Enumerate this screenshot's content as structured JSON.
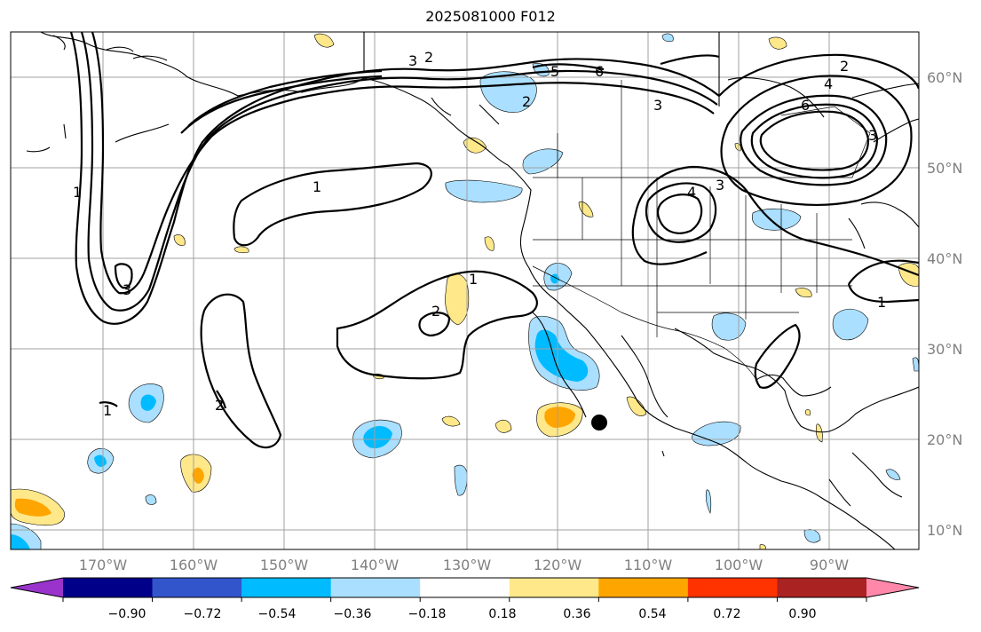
{
  "title": "2025081000 F012",
  "map": {
    "lon_labels": [
      "170°W",
      "160°W",
      "150°W",
      "140°W",
      "130°W",
      "120°W",
      "110°W",
      "100°W",
      "90°W"
    ],
    "lat_labels": [
      "60°N",
      "50°N",
      "40°N",
      "30°N",
      "20°N",
      "10°N"
    ],
    "contour_labels": [
      "1",
      "5",
      "3",
      "6",
      "2",
      "1",
      "1",
      "2",
      "1",
      "2",
      "2",
      "3",
      "4",
      "3",
      "6",
      "4",
      "2",
      "3",
      "3",
      "1"
    ],
    "colors": {
      "grid": "#a0a0a0",
      "coast": "#000000",
      "contour": "#000000",
      "label": "#808080"
    },
    "marker": "black-dot"
  },
  "colorbar": {
    "tick_labels": [
      "−0.90",
      "−0.72",
      "−0.54",
      "−0.36",
      "−0.18",
      "0.18",
      "0.36",
      "0.54",
      "0.72",
      "0.90"
    ],
    "colors": [
      "#9933cc",
      "#000088",
      "#3355cc",
      "#00bbff",
      "#aadfff",
      "#ffffff",
      "#ffe88a",
      "#ffa500",
      "#ff3300",
      "#aa2222",
      "#ff88aa"
    ]
  }
}
